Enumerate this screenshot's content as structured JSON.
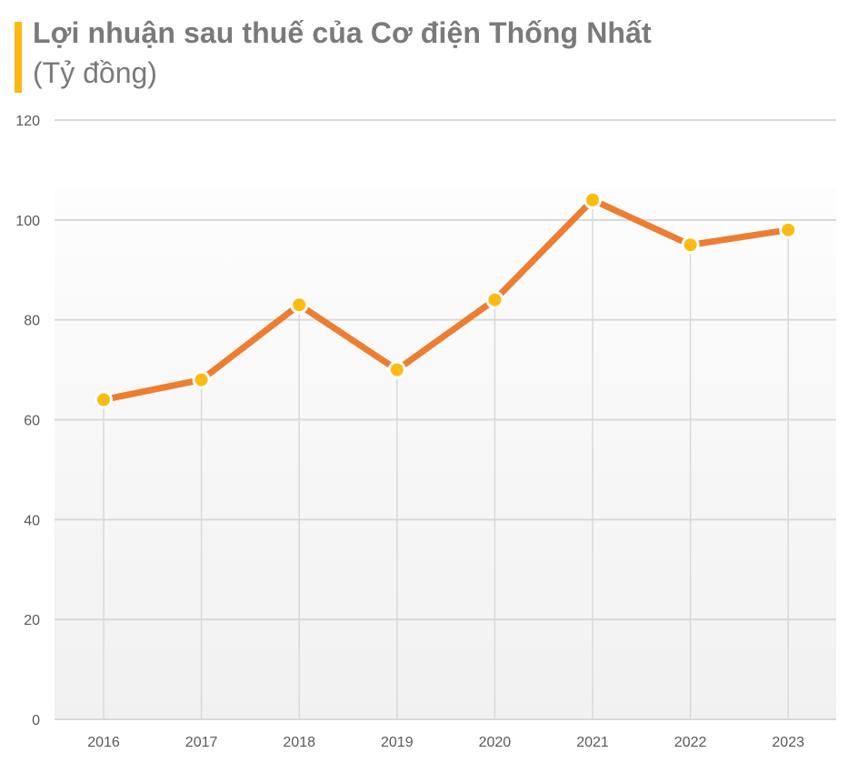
{
  "header": {
    "title": "Lợi nhuận sau thuế của Cơ điện Thống Nhất",
    "subtitle": "(Tỷ đồng)"
  },
  "colors": {
    "accent_bar": "#FDB813",
    "line": "#ED7D31",
    "marker": "#FDBB12",
    "marker_border": "#FFFFFF",
    "grid": "#D9D9D9",
    "title_text": "#7A7A7A",
    "tick_text": "#595959"
  },
  "chart_data": {
    "type": "line",
    "title": "Lợi nhuận sau thuế của Cơ điện Thống Nhất",
    "subtitle": "(Tỷ đồng)",
    "xlabel": "",
    "ylabel": "Tỷ đồng",
    "categories": [
      "2016",
      "2017",
      "2018",
      "2019",
      "2020",
      "2021",
      "2022",
      "2023"
    ],
    "series": [
      {
        "name": "Lợi nhuận sau thuế",
        "values": [
          64,
          68,
          83,
          70,
          84,
          104,
          95,
          98
        ]
      }
    ],
    "ylim": [
      0,
      120
    ],
    "yticks": [
      0,
      20,
      40,
      60,
      80,
      100,
      120
    ],
    "grid": {
      "horizontal": true,
      "vertical_droplines": true
    },
    "legend": null,
    "markers": true
  }
}
